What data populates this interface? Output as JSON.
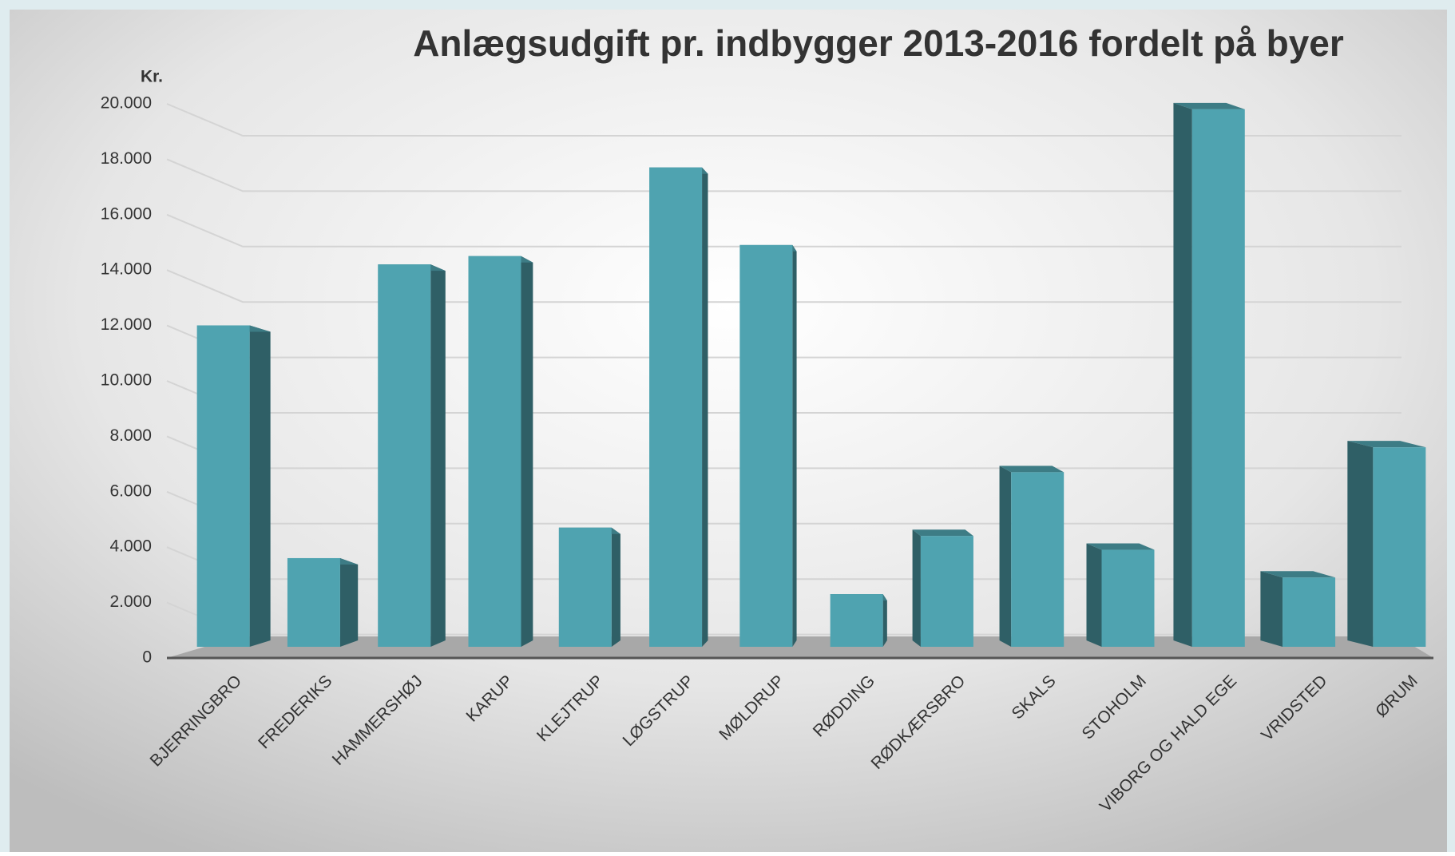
{
  "chart_data": {
    "type": "bar",
    "title": "Anlægsudgift pr. indbygger 2013-2016 fordelt på byer",
    "y_label": "Kr.",
    "categories": [
      "BJERRINGBRO",
      "FREDERIKS",
      "HAMMERSHØJ",
      "KARUP",
      "KLEJTRUP",
      "LØGSTRUP",
      "MØLDRUP",
      "RØDDING",
      "RØDKÆRSBRO",
      "SKALS",
      "STOHOLM",
      "VIBORG OG HALD EGE",
      "VRIDSTED",
      "ØRUM"
    ],
    "values": [
      11600,
      3200,
      13800,
      14100,
      4300,
      17300,
      14500,
      1900,
      4000,
      6300,
      3500,
      19400,
      2500,
      7200
    ],
    "color": "#4fa3b0",
    "ylim": [
      0,
      20000
    ],
    "yticks": [
      0,
      {
        "value": 2000,
        "label": "2.000"
      },
      {
        "value": 4000,
        "label": "4.000"
      },
      {
        "value": 6000,
        "label": "6.000"
      },
      {
        "value": 8000,
        "label": "8.000"
      },
      {
        "value": 10000,
        "label": "10.000"
      },
      {
        "value": 12000,
        "label": "12.000"
      },
      {
        "value": 14000,
        "label": "14.000"
      },
      {
        "value": 16000,
        "label": "16.000"
      },
      {
        "value": 18000,
        "label": "18.000"
      },
      {
        "value": 20000,
        "label": "20.000"
      }
    ],
    "grid": true
  }
}
